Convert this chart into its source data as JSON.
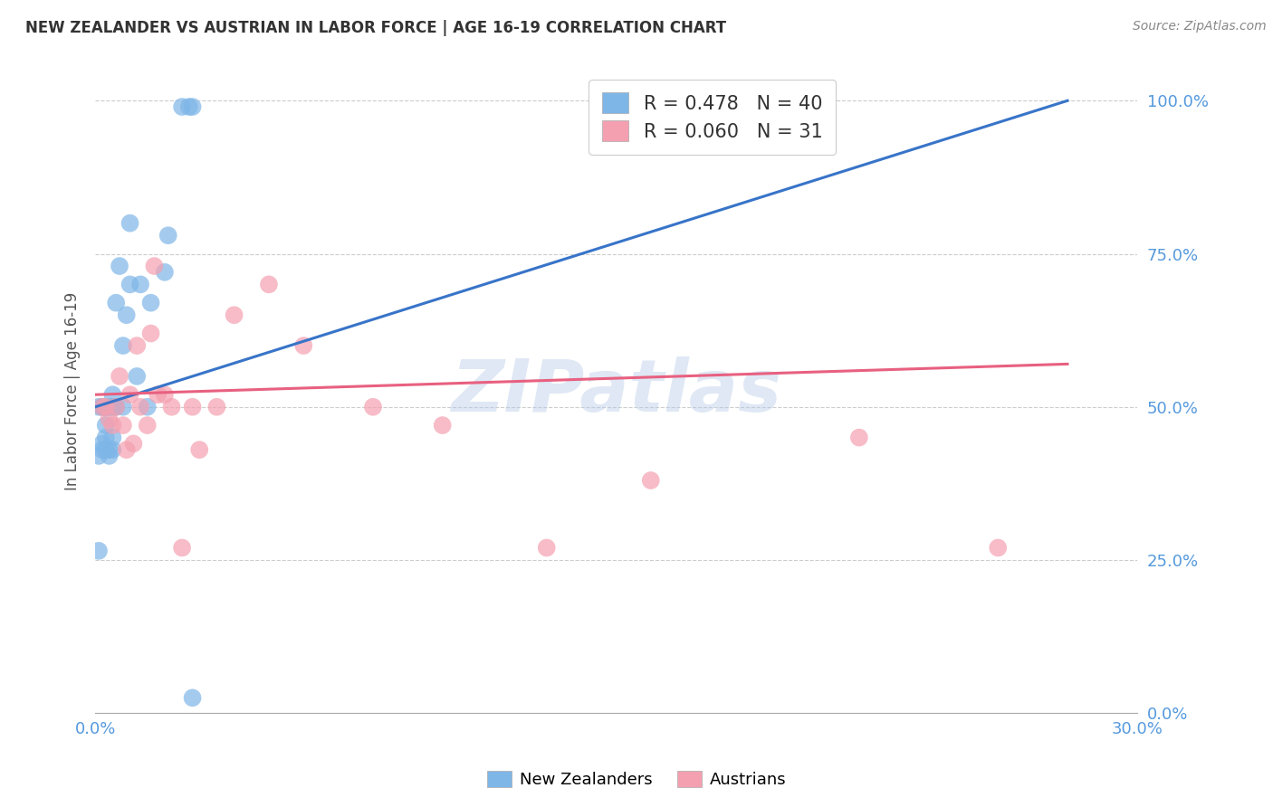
{
  "title": "NEW ZEALANDER VS AUSTRIAN IN LABOR FORCE | AGE 16-19 CORRELATION CHART",
  "source": "Source: ZipAtlas.com",
  "ylabel": "In Labor Force | Age 16-19",
  "xlim": [
    0.0,
    0.3
  ],
  "ylim": [
    0.0,
    1.05
  ],
  "ytick_vals": [
    0.0,
    0.25,
    0.5,
    0.75,
    1.0
  ],
  "xtick_vals": [
    0.0,
    0.3
  ],
  "nz_R": 0.478,
  "nz_N": 40,
  "at_R": 0.06,
  "at_N": 31,
  "nz_color": "#7EB6E8",
  "at_color": "#F4A0B0",
  "nz_line_color": "#3874C8",
  "at_line_color": "#E86080",
  "watermark": "ZIPatlas",
  "nz_x": [
    0.001,
    0.001,
    0.001,
    0.002,
    0.002,
    0.002,
    0.002,
    0.003,
    0.003,
    0.003,
    0.003,
    0.003,
    0.003,
    0.004,
    0.004,
    0.004,
    0.004,
    0.005,
    0.005,
    0.005,
    0.005,
    0.005,
    0.006,
    0.006,
    0.007,
    0.008,
    0.008,
    0.009,
    0.01,
    0.01,
    0.012,
    0.013,
    0.015,
    0.016,
    0.02,
    0.021,
    0.025,
    0.027,
    0.028,
    0.028
  ],
  "nz_y": [
    0.265,
    0.42,
    0.5,
    0.43,
    0.44,
    0.5,
    0.5,
    0.43,
    0.45,
    0.47,
    0.5,
    0.5,
    0.5,
    0.42,
    0.43,
    0.5,
    0.5,
    0.43,
    0.45,
    0.5,
    0.5,
    0.52,
    0.5,
    0.67,
    0.73,
    0.5,
    0.6,
    0.65,
    0.7,
    0.8,
    0.55,
    0.7,
    0.5,
    0.67,
    0.72,
    0.78,
    0.99,
    0.99,
    0.99,
    0.025
  ],
  "at_x": [
    0.002,
    0.003,
    0.004,
    0.005,
    0.006,
    0.007,
    0.008,
    0.009,
    0.01,
    0.011,
    0.012,
    0.013,
    0.015,
    0.016,
    0.017,
    0.018,
    0.02,
    0.022,
    0.025,
    0.028,
    0.03,
    0.035,
    0.04,
    0.05,
    0.06,
    0.08,
    0.1,
    0.13,
    0.16,
    0.22,
    0.26
  ],
  "at_y": [
    0.5,
    0.5,
    0.48,
    0.47,
    0.5,
    0.55,
    0.47,
    0.43,
    0.52,
    0.44,
    0.6,
    0.5,
    0.47,
    0.62,
    0.73,
    0.52,
    0.52,
    0.5,
    0.27,
    0.5,
    0.43,
    0.5,
    0.65,
    0.7,
    0.6,
    0.5,
    0.47,
    0.27,
    0.38,
    0.45,
    0.27
  ]
}
